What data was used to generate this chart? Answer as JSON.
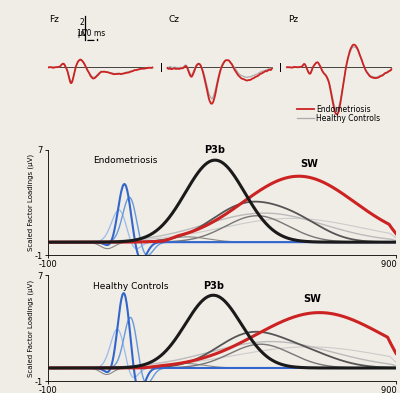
{
  "background_color": "#f0ece6",
  "panel2_title": "Endometriosis",
  "panel3_title": "Healthy Controls",
  "ylabel": "Scaled Factor Loadings (μV)",
  "p3b_label": "P3b",
  "sw_label": "SW",
  "endo_label": "Endometriosis",
  "healthy_label": "Healthy Controls",
  "ylim": [
    -1,
    7
  ],
  "xlim": [
    -100,
    900
  ],
  "colors": {
    "endo": "#cc2222",
    "healthy": "#aaaaaa",
    "black_thick": "#1a1a1a",
    "red_sw": "#cc2222",
    "dark_gray1": "#555555",
    "dark_gray2": "#777777",
    "blue1": "#3366cc",
    "blue2": "#6699dd",
    "blue3": "#99bbee",
    "light_gray1": "#bbbbbb",
    "light_gray2": "#cccccc",
    "mid_gray": "#888888"
  }
}
